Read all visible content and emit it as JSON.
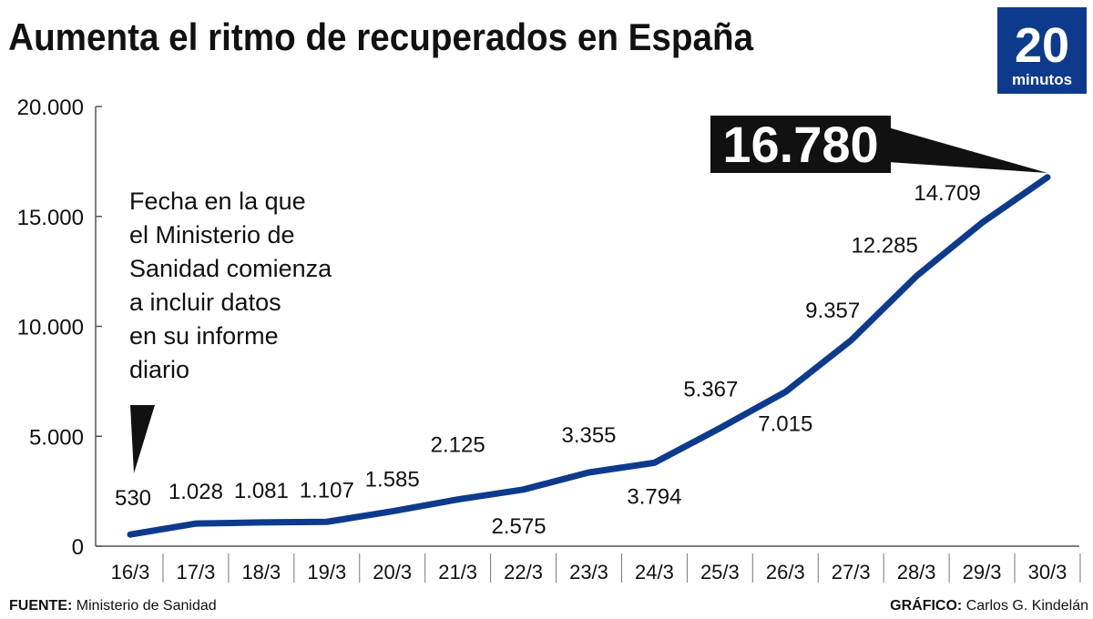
{
  "chart_data": {
    "type": "line",
    "title": "Aumenta el ritmo de recuperados en España",
    "logo": {
      "number": "20",
      "word": "minutos"
    },
    "categories": [
      "16/3",
      "17/3",
      "18/3",
      "19/3",
      "20/3",
      "21/3",
      "22/3",
      "23/3",
      "24/3",
      "25/3",
      "26/3",
      "27/3",
      "28/3",
      "29/3",
      "30/3"
    ],
    "series": [
      {
        "name": "Recuperados",
        "color": "#0d3a8c",
        "values": [
          530,
          1028,
          1081,
          1107,
          1585,
          2125,
          2575,
          3355,
          3794,
          5367,
          7015,
          9357,
          12285,
          14709,
          16780
        ],
        "value_labels": [
          "530",
          "1.028",
          "1.081",
          "1.107",
          "1.585",
          "2.125",
          "2.575",
          "3.355",
          "3.794",
          "5.367",
          "7.015",
          "9.357",
          "12.285",
          "14.709",
          "16.780"
        ]
      }
    ],
    "ylim": [
      0,
      20000
    ],
    "yticks": [
      0,
      {
        "value": 5000,
        "label": "5.000"
      },
      {
        "value": 10000,
        "label": "10.000"
      },
      {
        "value": 15000,
        "label": "15.000"
      },
      {
        "value": 20000,
        "label": "20.000"
      }
    ],
    "annotation": [
      "Fecha en la que",
      "el Ministerio de",
      "Sanidad comienza",
      "a incluir datos",
      "en su informe",
      "diario"
    ],
    "source": {
      "label": "FUENTE:",
      "text": "Ministerio de Sanidad"
    },
    "credit": {
      "label": "GRÁFICO:",
      "text": "Carlos G. Kindelán"
    }
  }
}
